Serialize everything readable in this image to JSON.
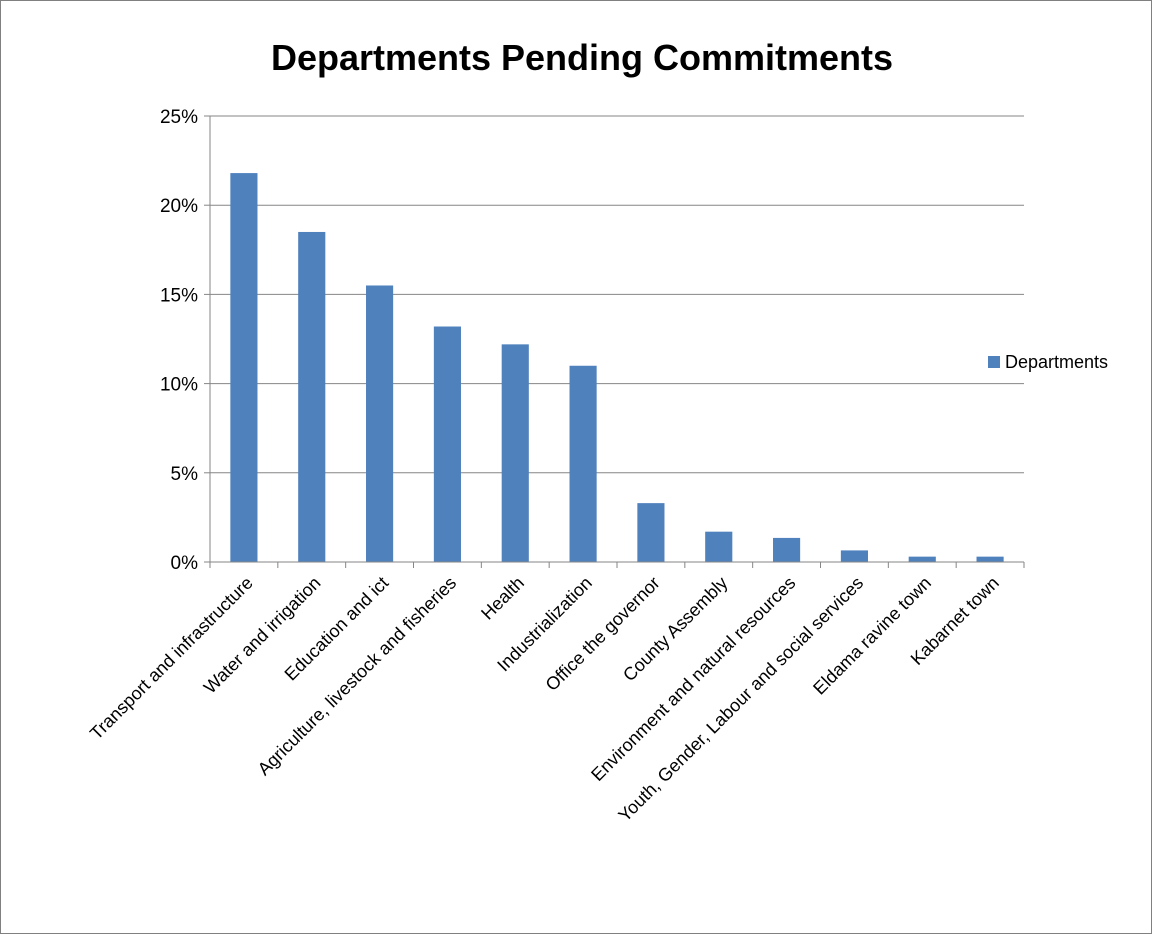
{
  "chart_data": {
    "type": "bar",
    "title": "Departments Pending Commitments",
    "xlabel": "",
    "ylabel": "",
    "ylim": [
      0,
      25
    ],
    "y_ticks": [
      "0%",
      "5%",
      "10%",
      "15%",
      "20%",
      "25%"
    ],
    "y_tick_values": [
      0,
      5,
      10,
      15,
      20,
      25
    ],
    "grid": true,
    "legend_position": "right",
    "categories": [
      "Transport and infrastructure",
      "Water and irrigation",
      "Education and ict",
      "Agriculture, livestock and fisheries",
      "Health",
      "Industrialization",
      "Office the governor",
      "County Assembly",
      "Environment and natural resources",
      "Youth, Gender, Labour and social services",
      "Eldama ravine town",
      "Kabarnet town"
    ],
    "series": [
      {
        "name": "Departments",
        "color": "#4f81bd",
        "values": [
          21.8,
          18.5,
          15.5,
          13.2,
          12.2,
          11.0,
          3.3,
          1.7,
          1.35,
          0.65,
          0.3,
          0.3
        ]
      }
    ]
  }
}
